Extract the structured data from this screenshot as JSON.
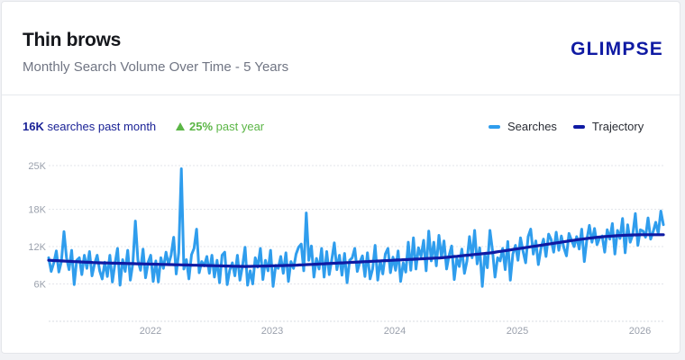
{
  "header": {
    "title": "Thin brows",
    "subtitle": "Monthly Search Volume Over Time - 5 Years",
    "logo_text": "GLIMPSE"
  },
  "stats": {
    "searches_value": "16K",
    "searches_label": "searches past month",
    "growth_value": "25%",
    "growth_label": "past year"
  },
  "colors": {
    "searches": "#2f9ded",
    "trajectory": "#0f1aa3",
    "growth": "#5bb646"
  },
  "chart_data": {
    "type": "line",
    "x_start": "2021-03",
    "frequency": "weekly",
    "x_ticks": [
      "2022",
      "2023",
      "2024",
      "2025",
      "2026"
    ],
    "y_ticks": [
      "6K",
      "12K",
      "18K",
      "25K"
    ],
    "ylim": [
      0,
      25000
    ],
    "grid": true,
    "legend_position": "top-right",
    "series": [
      {
        "name": "Searches",
        "values": [
          10200,
          8000,
          9400,
          11300,
          7900,
          9600,
          14400,
          10200,
          8300,
          11400,
          5900,
          9800,
          10200,
          7500,
          10600,
          8500,
          11200,
          7300,
          9200,
          10600,
          8100,
          6800,
          9500,
          7200,
          10600,
          6300,
          9300,
          11700,
          5800,
          9900,
          8000,
          11400,
          6600,
          9300,
          16100,
          9800,
          8200,
          11600,
          7000,
          9500,
          10600,
          6400,
          9700,
          6300,
          10200,
          8500,
          11100,
          9100,
          10600,
          13500,
          7600,
          11000,
          24500,
          8400,
          9900,
          6800,
          10700,
          11700,
          14800,
          7800,
          9600,
          8900,
          10400,
          7700,
          10600,
          7100,
          9800,
          6200,
          10600,
          11100,
          5900,
          8200,
          9400,
          7300,
          10600,
          6600,
          8900,
          11900,
          5800,
          8100,
          6000,
          10200,
          8700,
          11700,
          6700,
          9800,
          8100,
          11400,
          5600,
          9000,
          8500,
          10400,
          7700,
          11000,
          6400,
          9600,
          8500,
          10800,
          11900,
          12400,
          8100,
          17400,
          9800,
          12100,
          7100,
          10100,
          8400,
          11700,
          7100,
          11200,
          7500,
          9900,
          12600,
          8300,
          10600,
          7400,
          10900,
          6200,
          9800,
          10200,
          11700,
          8000,
          9500,
          10500,
          7200,
          11000,
          6800,
          8400,
          12200,
          6600,
          9700,
          7600,
          10800,
          11700,
          7800,
          10300,
          8200,
          11300,
          6400,
          9400,
          7900,
          12700,
          8200,
          13400,
          8400,
          11800,
          10400,
          13000,
          8100,
          14500,
          9700,
          12700,
          8900,
          13800,
          10300,
          12900,
          8400,
          10600,
          12100,
          6700,
          10100,
          8800,
          11600,
          7700,
          9700,
          13600,
          10200,
          14600,
          9200,
          11800,
          5600,
          10800,
          8600,
          14600,
          11400,
          7100,
          10200,
          9700,
          11700,
          8300,
          12800,
          6600,
          10800,
          12200,
          9800,
          13400,
          11200,
          9400,
          13600,
          14800,
          10800,
          12900,
          9100,
          11700,
          13200,
          10400,
          14000,
          13100,
          11100,
          14300,
          11400,
          13700,
          11800,
          10500,
          14100,
          13000,
          12000,
          13600,
          11600,
          14800,
          9600,
          13100,
          15400,
          12700,
          14900,
          12300,
          13400,
          13700,
          11100,
          14700,
          13200,
          15700,
          10800,
          14600,
          13300,
          16500,
          11000,
          15500,
          12700,
          13900,
          17300,
          12200,
          14700,
          14500,
          13500,
          16600,
          13200,
          14400,
          15900,
          14100,
          17700,
          15500
        ],
        "color": "#2f9ded"
      },
      {
        "name": "Trajectory",
        "values": [
          9800,
          9780,
          9760,
          9740,
          9720,
          9700,
          9680,
          9660,
          9640,
          9620,
          9600,
          9580,
          9560,
          9540,
          9520,
          9500,
          9480,
          9460,
          9440,
          9420,
          9400,
          9390,
          9380,
          9370,
          9360,
          9350,
          9340,
          9330,
          9320,
          9310,
          9300,
          9290,
          9280,
          9270,
          9260,
          9250,
          9240,
          9230,
          9220,
          9210,
          9200,
          9190,
          9180,
          9170,
          9160,
          9150,
          9140,
          9130,
          9120,
          9110,
          9100,
          9090,
          9080,
          9070,
          9060,
          9050,
          9040,
          9030,
          9020,
          9010,
          9000,
          8990,
          8980,
          8970,
          8960,
          8950,
          8940,
          8930,
          8920,
          8910,
          8900,
          8890,
          8880,
          8870,
          8860,
          8850,
          8840,
          8830,
          8820,
          8810,
          8800,
          8810,
          8820,
          8830,
          8840,
          8850,
          8860,
          8870,
          8880,
          8890,
          8900,
          8910,
          8920,
          8930,
          8940,
          8950,
          8960,
          8970,
          8980,
          8990,
          9000,
          9020,
          9040,
          9060,
          9080,
          9100,
          9120,
          9140,
          9160,
          9180,
          9200,
          9220,
          9240,
          9260,
          9280,
          9300,
          9320,
          9340,
          9360,
          9380,
          9400,
          9420,
          9440,
          9460,
          9480,
          9500,
          9520,
          9540,
          9560,
          9580,
          9600,
          9620,
          9640,
          9660,
          9680,
          9700,
          9720,
          9740,
          9760,
          9780,
          9800,
          9820,
          9840,
          9860,
          9880,
          9900,
          9920,
          9940,
          9960,
          9980,
          10000,
          10020,
          10040,
          10060,
          10080,
          10100,
          10120,
          10140,
          10160,
          10180,
          10200,
          10240,
          10280,
          10320,
          10360,
          10400,
          10440,
          10480,
          10520,
          10560,
          10600,
          10640,
          10680,
          10720,
          10760,
          10800,
          10840,
          10880,
          10920,
          10960,
          11000,
          11060,
          11120,
          11180,
          11240,
          11300,
          11360,
          11420,
          11480,
          11540,
          11600,
          11660,
          11720,
          11780,
          11840,
          11900,
          11960,
          12020,
          12080,
          12140,
          12200,
          12260,
          12320,
          12380,
          12440,
          12500,
          12560,
          12620,
          12680,
          12740,
          12800,
          12860,
          12920,
          12980,
          13040,
          13100,
          13150,
          13200,
          13250,
          13300,
          13350,
          13400,
          13440,
          13480,
          13520,
          13560,
          13600,
          13630,
          13660,
          13690,
          13720,
          13750,
          13770,
          13790,
          13810,
          13830,
          13850,
          13860,
          13870,
          13880,
          13890,
          13900,
          13900,
          13900,
          13900,
          13900,
          13900,
          13900,
          13900,
          13900,
          13900
        ],
        "color": "#0f1aa3"
      }
    ]
  }
}
